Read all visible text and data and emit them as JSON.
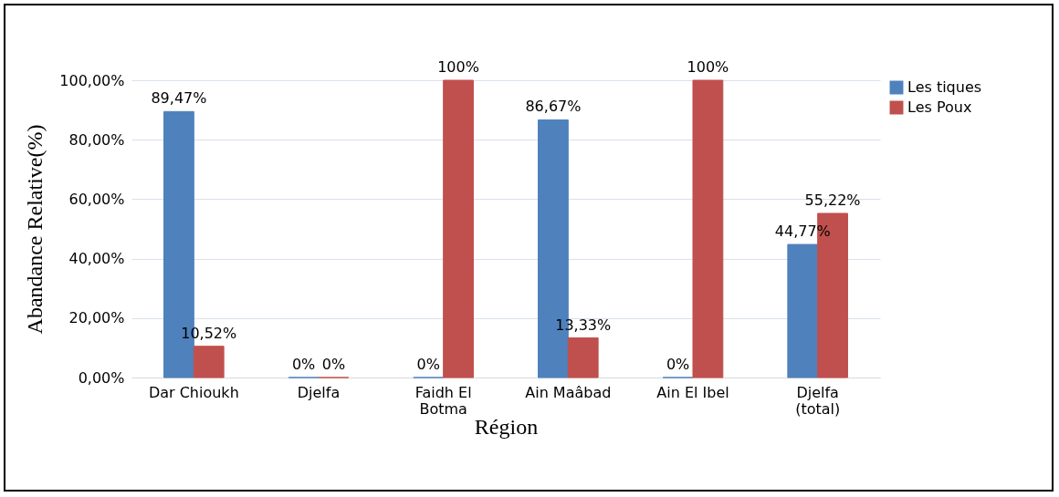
{
  "chart_data": {
    "type": "bar",
    "xlabel": "Région",
    "ylabel": "Abandance Relative(%)",
    "categories": [
      "Dar Chioukh",
      "Djelfa",
      "Faidh El Botma",
      "Ain Maâbad",
      "Ain El Ibel",
      "Djelfa (total)"
    ],
    "series": [
      {
        "name": "Les tiques",
        "color": "#4f81bd",
        "values": [
          89.47,
          0,
          0,
          86.67,
          0,
          44.77
        ],
        "value_labels": [
          "89,47%",
          "0%",
          "0%",
          "86,67%",
          "0%",
          "44,77%"
        ]
      },
      {
        "name": "Les Poux",
        "color": "#c0504d",
        "values": [
          10.52,
          0,
          100,
          13.33,
          100,
          55.22
        ],
        "value_labels": [
          "10,52%",
          "0%",
          "100%",
          "13,33%",
          "100%",
          "55,22%"
        ]
      }
    ],
    "ylim": [
      0,
      100
    ],
    "yticks": [
      {
        "value": 0,
        "label": "0,00%"
      },
      {
        "value": 20,
        "label": "20,00%"
      },
      {
        "value": 40,
        "label": "40,00%"
      },
      {
        "value": 60,
        "label": "60,00%"
      },
      {
        "value": 80,
        "label": "80,00%"
      },
      {
        "value": 100,
        "label": "100,00%"
      }
    ],
    "grid": "y",
    "legend": "right"
  }
}
